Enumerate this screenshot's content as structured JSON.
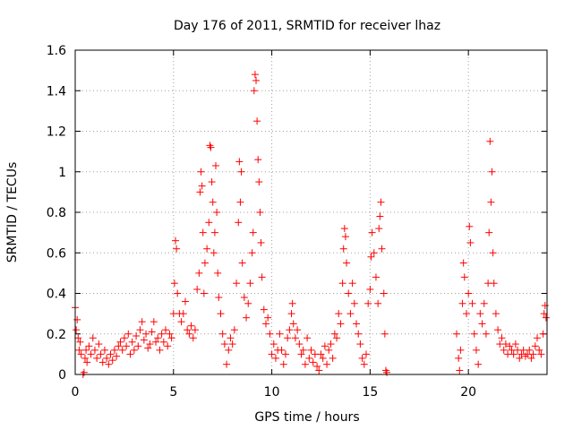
{
  "chart_data": {
    "type": "scatter",
    "title": "Day 176 of 2011, SRMTID for receiver lhaz",
    "xlabel": "GPS time / hours",
    "ylabel": "SRMTID / TECUs",
    "xlim": [
      0,
      24
    ],
    "ylim": [
      0,
      1.6
    ],
    "x_ticks": [
      0,
      5,
      10,
      15,
      20
    ],
    "x_tick_labels": [
      "0",
      "5",
      "10",
      "15",
      "20"
    ],
    "y_ticks": [
      0,
      0.2,
      0.4,
      0.6,
      0.8,
      1.0,
      1.2,
      1.4,
      1.6
    ],
    "y_tick_labels": [
      "0",
      "0.2",
      "0.4",
      "0.6",
      "0.8",
      "1",
      "1.2",
      "1.4",
      "1.6"
    ],
    "grid": true,
    "marker": "plus",
    "marker_color": "#ff0000",
    "series": [
      {
        "name": "SRMTID",
        "points": [
          [
            0.0,
            0.33
          ],
          [
            0.05,
            0.22
          ],
          [
            0.1,
            0.27
          ],
          [
            0.15,
            0.18
          ],
          [
            0.2,
            0.12
          ],
          [
            0.25,
            0.16
          ],
          [
            0.3,
            0.1
          ],
          [
            0.4,
            0.0
          ],
          [
            0.45,
            0.01
          ],
          [
            0.5,
            0.08
          ],
          [
            0.55,
            0.12
          ],
          [
            0.6,
            0.06
          ],
          [
            0.7,
            0.14
          ],
          [
            0.8,
            0.1
          ],
          [
            0.9,
            0.18
          ],
          [
            1.0,
            0.12
          ],
          [
            1.1,
            0.08
          ],
          [
            1.2,
            0.15
          ],
          [
            1.3,
            0.1
          ],
          [
            1.4,
            0.06
          ],
          [
            1.5,
            0.12
          ],
          [
            1.6,
            0.08
          ],
          [
            1.7,
            0.05
          ],
          [
            1.8,
            0.1
          ],
          [
            1.9,
            0.07
          ],
          [
            2.0,
            0.12
          ],
          [
            2.1,
            0.09
          ],
          [
            2.2,
            0.14
          ],
          [
            2.3,
            0.16
          ],
          [
            2.4,
            0.12
          ],
          [
            2.5,
            0.18
          ],
          [
            2.6,
            0.14
          ],
          [
            2.7,
            0.2
          ],
          [
            2.8,
            0.1
          ],
          [
            2.9,
            0.16
          ],
          [
            3.0,
            0.12
          ],
          [
            3.1,
            0.19
          ],
          [
            3.2,
            0.14
          ],
          [
            3.3,
            0.22
          ],
          [
            3.4,
            0.26
          ],
          [
            3.5,
            0.17
          ],
          [
            3.6,
            0.2
          ],
          [
            3.7,
            0.13
          ],
          [
            3.8,
            0.15
          ],
          [
            3.9,
            0.21
          ],
          [
            4.0,
            0.26
          ],
          [
            4.1,
            0.16
          ],
          [
            4.2,
            0.18
          ],
          [
            4.3,
            0.12
          ],
          [
            4.4,
            0.2
          ],
          [
            4.5,
            0.16
          ],
          [
            4.6,
            0.22
          ],
          [
            4.7,
            0.14
          ],
          [
            4.8,
            0.2
          ],
          [
            4.9,
            0.18
          ],
          [
            5.0,
            0.3
          ],
          [
            5.05,
            0.45
          ],
          [
            5.1,
            0.66
          ],
          [
            5.15,
            0.62
          ],
          [
            5.2,
            0.4
          ],
          [
            5.3,
            0.3
          ],
          [
            5.4,
            0.26
          ],
          [
            5.5,
            0.3
          ],
          [
            5.6,
            0.36
          ],
          [
            5.7,
            0.22
          ],
          [
            5.8,
            0.2
          ],
          [
            5.9,
            0.24
          ],
          [
            6.0,
            0.18
          ],
          [
            6.1,
            0.22
          ],
          [
            6.2,
            0.42
          ],
          [
            6.3,
            0.5
          ],
          [
            6.35,
            0.9
          ],
          [
            6.4,
            1.0
          ],
          [
            6.45,
            0.93
          ],
          [
            6.5,
            0.7
          ],
          [
            6.55,
            0.4
          ],
          [
            6.6,
            0.55
          ],
          [
            6.7,
            0.62
          ],
          [
            6.8,
            0.75
          ],
          [
            6.85,
            1.13
          ],
          [
            6.9,
            1.12
          ],
          [
            6.95,
            0.95
          ],
          [
            7.0,
            0.85
          ],
          [
            7.05,
            0.6
          ],
          [
            7.1,
            0.7
          ],
          [
            7.15,
            1.03
          ],
          [
            7.2,
            0.8
          ],
          [
            7.25,
            0.5
          ],
          [
            7.3,
            0.38
          ],
          [
            7.4,
            0.3
          ],
          [
            7.5,
            0.2
          ],
          [
            7.6,
            0.15
          ],
          [
            7.7,
            0.05
          ],
          [
            7.8,
            0.12
          ],
          [
            7.9,
            0.18
          ],
          [
            8.0,
            0.15
          ],
          [
            8.1,
            0.22
          ],
          [
            8.2,
            0.45
          ],
          [
            8.3,
            0.75
          ],
          [
            8.35,
            1.05
          ],
          [
            8.4,
            0.85
          ],
          [
            8.45,
            1.0
          ],
          [
            8.5,
            0.55
          ],
          [
            8.6,
            0.38
          ],
          [
            8.7,
            0.28
          ],
          [
            8.8,
            0.35
          ],
          [
            8.9,
            0.45
          ],
          [
            9.0,
            0.6
          ],
          [
            9.05,
            0.7
          ],
          [
            9.1,
            1.4
          ],
          [
            9.15,
            1.48
          ],
          [
            9.2,
            1.45
          ],
          [
            9.25,
            1.25
          ],
          [
            9.3,
            1.06
          ],
          [
            9.35,
            0.95
          ],
          [
            9.4,
            0.8
          ],
          [
            9.45,
            0.65
          ],
          [
            9.5,
            0.48
          ],
          [
            9.6,
            0.32
          ],
          [
            9.7,
            0.25
          ],
          [
            9.8,
            0.28
          ],
          [
            9.9,
            0.2
          ],
          [
            10.0,
            0.1
          ],
          [
            10.1,
            0.15
          ],
          [
            10.2,
            0.08
          ],
          [
            10.3,
            0.12
          ],
          [
            10.4,
            0.2
          ],
          [
            10.5,
            0.12
          ],
          [
            10.6,
            0.05
          ],
          [
            10.7,
            0.1
          ],
          [
            10.8,
            0.18
          ],
          [
            10.9,
            0.22
          ],
          [
            11.0,
            0.3
          ],
          [
            11.05,
            0.35
          ],
          [
            11.1,
            0.25
          ],
          [
            11.2,
            0.18
          ],
          [
            11.3,
            0.22
          ],
          [
            11.4,
            0.15
          ],
          [
            11.5,
            0.1
          ],
          [
            11.6,
            0.12
          ],
          [
            11.7,
            0.05
          ],
          [
            11.8,
            0.18
          ],
          [
            11.9,
            0.08
          ],
          [
            12.0,
            0.12
          ],
          [
            12.1,
            0.06
          ],
          [
            12.2,
            0.1
          ],
          [
            12.3,
            0.04
          ],
          [
            12.4,
            0.02
          ],
          [
            12.5,
            0.1
          ],
          [
            12.6,
            0.08
          ],
          [
            12.7,
            0.14
          ],
          [
            12.8,
            0.05
          ],
          [
            12.9,
            0.12
          ],
          [
            13.0,
            0.15
          ],
          [
            13.1,
            0.08
          ],
          [
            13.2,
            0.2
          ],
          [
            13.3,
            0.18
          ],
          [
            13.4,
            0.3
          ],
          [
            13.5,
            0.25
          ],
          [
            13.6,
            0.45
          ],
          [
            13.65,
            0.62
          ],
          [
            13.7,
            0.72
          ],
          [
            13.75,
            0.68
          ],
          [
            13.8,
            0.55
          ],
          [
            13.9,
            0.4
          ],
          [
            14.0,
            0.3
          ],
          [
            14.1,
            0.45
          ],
          [
            14.2,
            0.35
          ],
          [
            14.3,
            0.25
          ],
          [
            14.4,
            0.2
          ],
          [
            14.5,
            0.15
          ],
          [
            14.6,
            0.08
          ],
          [
            14.7,
            0.05
          ],
          [
            14.8,
            0.1
          ],
          [
            14.9,
            0.35
          ],
          [
            15.0,
            0.42
          ],
          [
            15.05,
            0.58
          ],
          [
            15.1,
            0.7
          ],
          [
            15.2,
            0.6
          ],
          [
            15.3,
            0.48
          ],
          [
            15.4,
            0.35
          ],
          [
            15.45,
            0.72
          ],
          [
            15.5,
            0.78
          ],
          [
            15.55,
            0.85
          ],
          [
            15.6,
            0.62
          ],
          [
            15.7,
            0.4
          ],
          [
            15.75,
            0.2
          ],
          [
            15.8,
            0.02
          ],
          [
            15.85,
            0.01
          ],
          [
            19.4,
            0.2
          ],
          [
            19.5,
            0.08
          ],
          [
            19.55,
            0.02
          ],
          [
            19.6,
            0.12
          ],
          [
            19.7,
            0.35
          ],
          [
            19.75,
            0.55
          ],
          [
            19.8,
            0.48
          ],
          [
            19.9,
            0.3
          ],
          [
            20.0,
            0.4
          ],
          [
            20.05,
            0.73
          ],
          [
            20.1,
            0.65
          ],
          [
            20.2,
            0.35
          ],
          [
            20.3,
            0.2
          ],
          [
            20.4,
            0.12
          ],
          [
            20.5,
            0.05
          ],
          [
            20.6,
            0.3
          ],
          [
            20.7,
            0.25
          ],
          [
            20.8,
            0.35
          ],
          [
            20.9,
            0.2
          ],
          [
            21.0,
            0.45
          ],
          [
            21.05,
            0.7
          ],
          [
            21.1,
            1.15
          ],
          [
            21.15,
            0.85
          ],
          [
            21.2,
            1.0
          ],
          [
            21.25,
            0.6
          ],
          [
            21.3,
            0.45
          ],
          [
            21.4,
            0.3
          ],
          [
            21.5,
            0.22
          ],
          [
            21.6,
            0.15
          ],
          [
            21.7,
            0.18
          ],
          [
            21.8,
            0.12
          ],
          [
            21.9,
            0.15
          ],
          [
            22.0,
            0.1
          ],
          [
            22.1,
            0.14
          ],
          [
            22.2,
            0.12
          ],
          [
            22.3,
            0.1
          ],
          [
            22.4,
            0.15
          ],
          [
            22.5,
            0.12
          ],
          [
            22.6,
            0.08
          ],
          [
            22.7,
            0.1
          ],
          [
            22.8,
            0.12
          ],
          [
            22.9,
            0.09
          ],
          [
            23.0,
            0.1
          ],
          [
            23.1,
            0.12
          ],
          [
            23.2,
            0.08
          ],
          [
            23.3,
            0.1
          ],
          [
            23.4,
            0.14
          ],
          [
            23.5,
            0.18
          ],
          [
            23.6,
            0.12
          ],
          [
            23.7,
            0.1
          ],
          [
            23.8,
            0.2
          ],
          [
            23.85,
            0.3
          ],
          [
            23.9,
            0.34
          ],
          [
            23.95,
            0.28
          ]
        ]
      }
    ]
  }
}
